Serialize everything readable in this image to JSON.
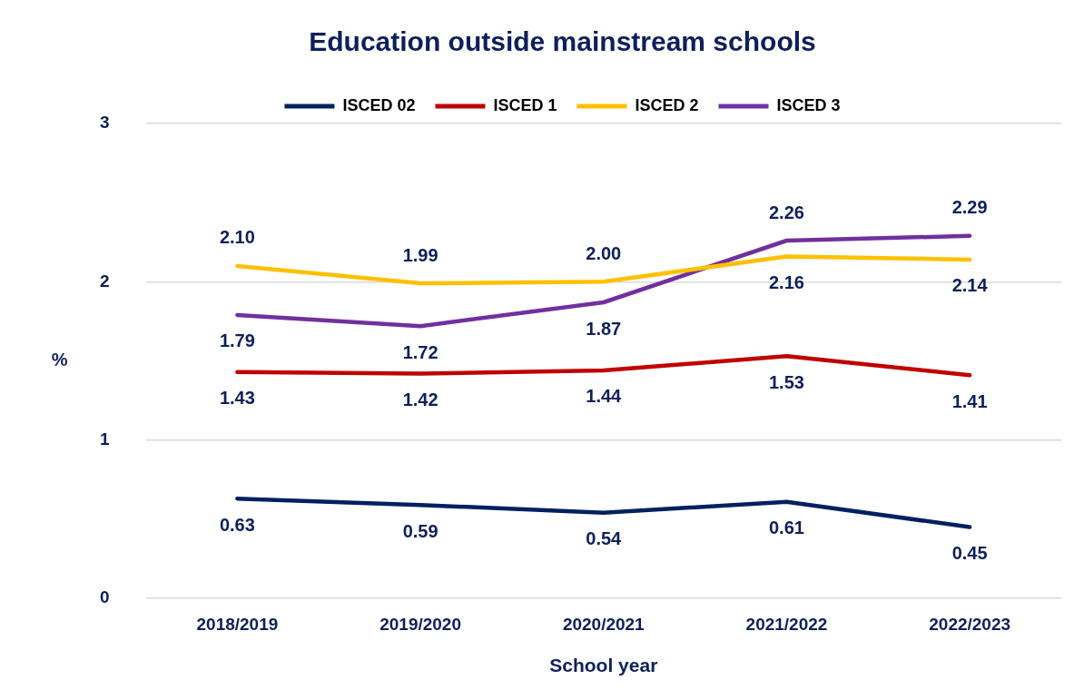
{
  "chart_data": {
    "type": "line",
    "title": "Education outside mainstream schools",
    "xlabel": "School year",
    "ylabel": "%",
    "categories": [
      "2018/2019",
      "2019/2020",
      "2020/2021",
      "2021/2022",
      "2022/2023"
    ],
    "series": [
      {
        "name": "ISCED 02",
        "color": "#002060",
        "values": [
          0.63,
          0.59,
          0.54,
          0.61,
          0.45
        ],
        "value_labels": [
          "0.63",
          "0.59",
          "0.54",
          "0.61",
          "0.45"
        ]
      },
      {
        "name": "ISCED 1",
        "color": "#c00000",
        "values": [
          1.43,
          1.42,
          1.44,
          1.53,
          1.41
        ],
        "value_labels": [
          "1.43",
          "1.42",
          "1.44",
          "1.53",
          "1.41"
        ]
      },
      {
        "name": "ISCED 2",
        "color": "#ffc000",
        "values": [
          2.1,
          1.99,
          2.0,
          2.16,
          2.14
        ],
        "value_labels": [
          "2.10",
          "1.99",
          "2.00",
          "2.16",
          "2.14"
        ]
      },
      {
        "name": "ISCED 3",
        "color": "#7030a0",
        "values": [
          1.79,
          1.72,
          1.87,
          2.26,
          2.29
        ],
        "value_labels": [
          "1.79",
          "1.72",
          "1.87",
          "2.26",
          "2.29"
        ]
      }
    ],
    "ylim": [
      0,
      3
    ],
    "yticks": [
      0,
      1,
      2,
      3
    ],
    "grid": "y",
    "legend": "top",
    "marker": "none",
    "line_style": "solid"
  }
}
